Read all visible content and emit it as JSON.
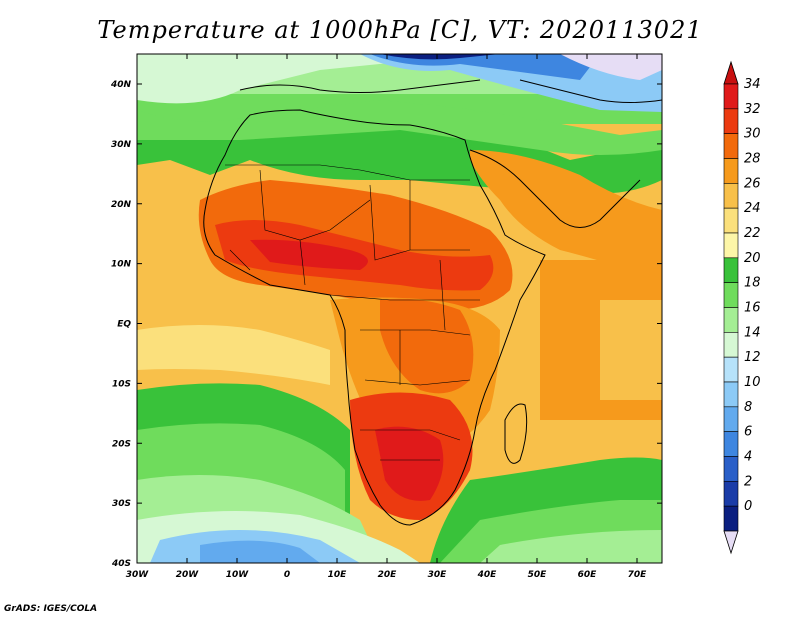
{
  "title": "Temperature at 1000hPa [C], VT: 2020113021",
  "credit": "GrADS: IGES/COLA",
  "axes": {
    "lon_labels": [
      "30W",
      "20W",
      "10W",
      "0",
      "10E",
      "20E",
      "30E",
      "40E",
      "50E",
      "60E",
      "70E"
    ],
    "lat_labels": [
      "40N",
      "30N",
      "20N",
      "10N",
      "EQ",
      "10S",
      "20S",
      "30S",
      "40S"
    ]
  },
  "colorbar": {
    "labels": [
      "34",
      "32",
      "30",
      "28",
      "26",
      "24",
      "22",
      "20",
      "18",
      "16",
      "14",
      "12",
      "10",
      "8",
      "6",
      "4",
      "2",
      "0"
    ],
    "colors": [
      "#e01a1a",
      "#ec3a10",
      "#f26a0c",
      "#f69a1c",
      "#f8c04a",
      "#fbe07c",
      "#fdf6a8",
      "#39c23a",
      "#6fdc5c",
      "#a4ee94",
      "#d6f8d4",
      "#b6e2fa",
      "#8ccaf6",
      "#62aaee",
      "#3e86e0",
      "#2a5fc8",
      "#1a3ca8",
      "#0b1f80"
    ],
    "below_color": "#e6ddf5",
    "above_color": "#c81010"
  }
}
